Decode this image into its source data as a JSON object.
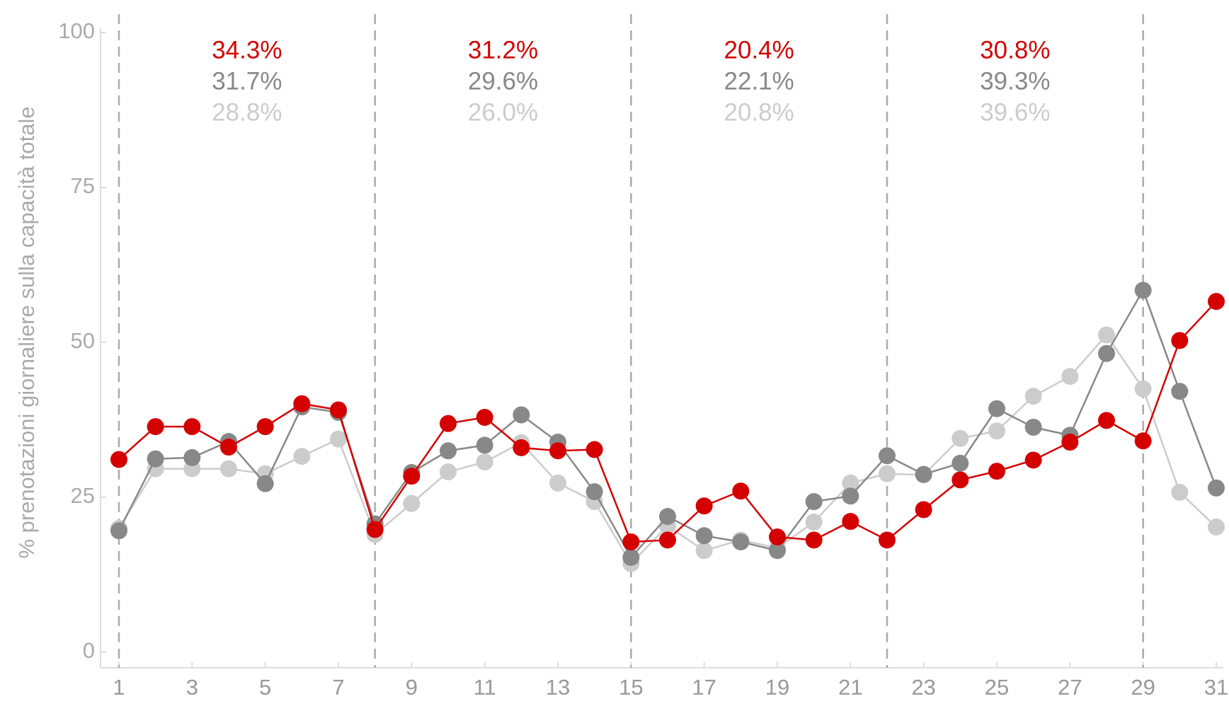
{
  "chart_data": {
    "type": "line",
    "y_label": "% prenotazioni giornaliere sulla capacità totale",
    "x": [
      1,
      2,
      3,
      4,
      5,
      6,
      7,
      8,
      9,
      10,
      11,
      12,
      13,
      14,
      15,
      16,
      17,
      18,
      19,
      20,
      21,
      22,
      23,
      24,
      25,
      26,
      27,
      28,
      29,
      30,
      31
    ],
    "series": [
      {
        "color": "#cccccc",
        "values": [
          20.0,
          29.6,
          29.6,
          29.6,
          28.8,
          31.6,
          34.4,
          19.0,
          24.0,
          29.1,
          30.7,
          33.8,
          27.3,
          24.3,
          14.3,
          20.4,
          16.4,
          18.1,
          16.8,
          21.0,
          27.3,
          28.8,
          28.6,
          34.5,
          35.7,
          41.3,
          44.5,
          51.2,
          42.5,
          25.8,
          20.2
        ]
      },
      {
        "color": "#888888",
        "values": [
          19.6,
          31.2,
          31.4,
          34.0,
          27.2,
          39.6,
          38.7,
          20.7,
          29.0,
          32.5,
          33.4,
          38.3,
          33.9,
          25.9,
          15.3,
          21.9,
          18.8,
          17.8,
          16.4,
          24.3,
          25.2,
          31.7,
          28.7,
          30.5,
          39.3,
          36.3,
          35.0,
          48.2,
          58.4,
          42.1,
          26.5
        ]
      },
      {
        "color": "#d40000",
        "values": [
          31.1,
          36.4,
          36.4,
          33.1,
          36.4,
          40.1,
          39.1,
          19.8,
          28.4,
          36.9,
          37.9,
          33.0,
          32.5,
          32.7,
          17.8,
          18.1,
          23.6,
          26.0,
          18.6,
          18.1,
          21.1,
          18.1,
          23.0,
          27.8,
          29.2,
          31.0,
          33.9,
          37.4,
          34.1,
          50.3,
          56.6
        ]
      }
    ],
    "week_lines": [
      1,
      8,
      15,
      22,
      29
    ],
    "annotations": [
      {
        "labels": [
          "34.3%",
          "31.7%",
          "28.8%"
        ]
      },
      {
        "labels": [
          "31.2%",
          "29.6%",
          "26.0%"
        ]
      },
      {
        "labels": [
          "20.4%",
          "22.1%",
          "20.8%"
        ]
      },
      {
        "labels": [
          "30.8%",
          "39.3%",
          "39.6%"
        ]
      }
    ],
    "xlim": [
      1,
      31
    ],
    "xticks": [
      1,
      3,
      5,
      7,
      9,
      11,
      13,
      15,
      17,
      19,
      21,
      23,
      25,
      27,
      29,
      31
    ],
    "ylim": [
      0,
      100
    ],
    "yticks": [
      0,
      25,
      50,
      75,
      100
    ]
  }
}
